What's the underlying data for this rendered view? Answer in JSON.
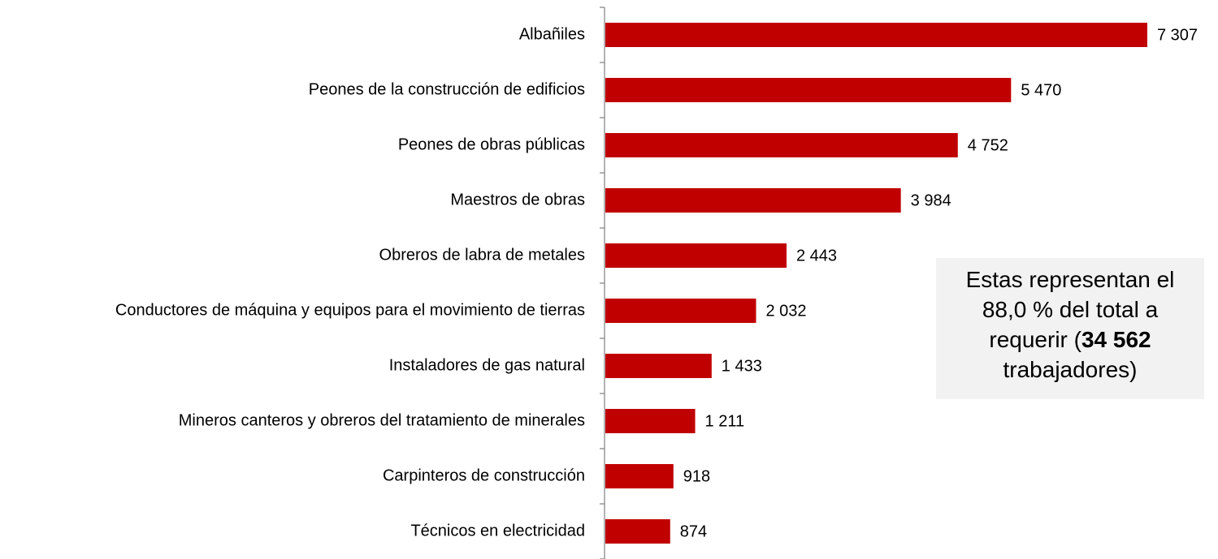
{
  "chart_data": {
    "type": "bar",
    "orientation": "horizontal",
    "categories": [
      "Albañiles",
      "Peones de la construcción de edificios",
      "Peones de obras públicas",
      "Maestros de obras",
      "Obreros de labra de metales",
      "Conductores de máquina  y equipos para el movimiento  de tierras",
      "Instaladores de gas natural",
      "Mineros canteros y obreros del tratamiento  de minerales",
      "Carpinteros de construcción",
      "Técnicos en electricidad"
    ],
    "values": [
      7307,
      5470,
      4752,
      3984,
      2443,
      2032,
      1433,
      1211,
      918,
      874
    ],
    "value_labels": [
      "7 307",
      "5 470",
      "4 752",
      "3 984",
      "2 443",
      "2 032",
      "1 433",
      "1 211",
      "918",
      "874"
    ],
    "color": "#c00000",
    "annotation": {
      "line1": "Estas representan el",
      "line2": "88,0 % del total a",
      "line3": "requerir (",
      "bold": "34 562",
      "line4": "trabajadores)"
    }
  }
}
